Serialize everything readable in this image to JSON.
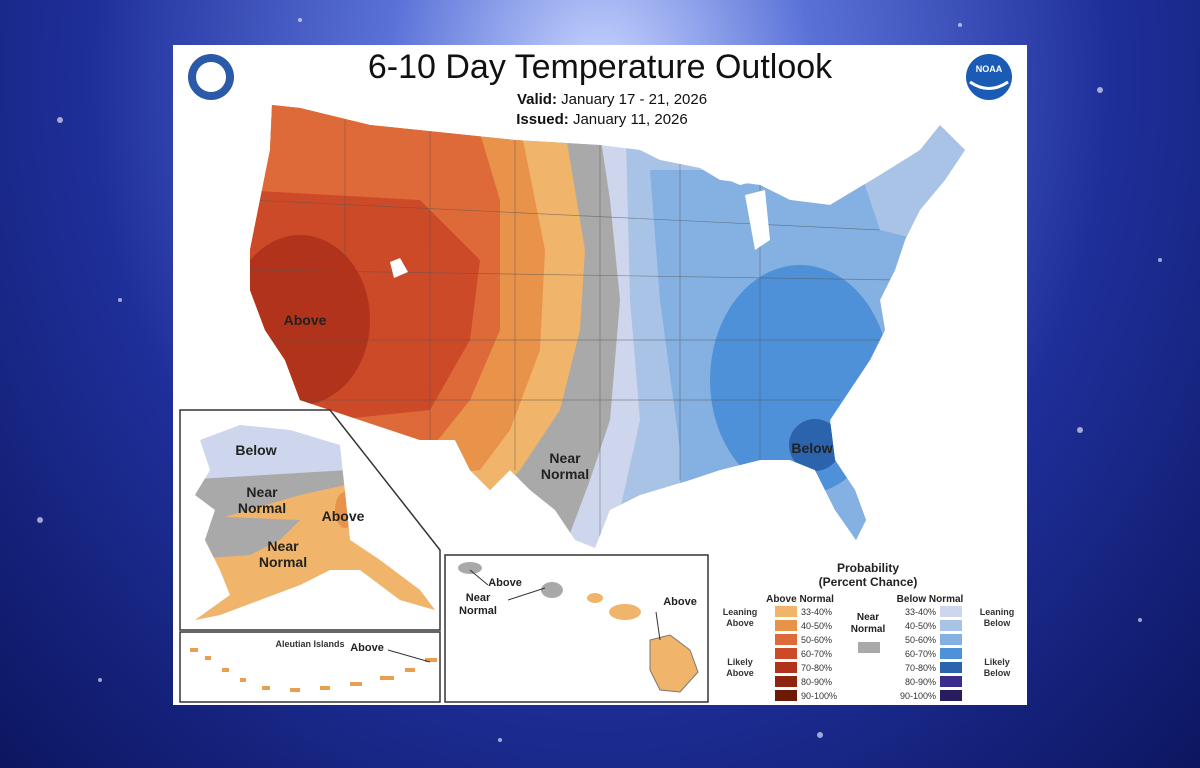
{
  "header": {
    "title": "6-10 Day Temperature Outlook",
    "valid_label": "Valid:",
    "valid_dates": "January 17 - 21, 2026",
    "issued_label": "Issued:",
    "issued_date": "January 11, 2026",
    "logo": "NOAA"
  },
  "contiguous_us": {
    "labels": [
      "Above",
      "Near Normal",
      "Below"
    ]
  },
  "alaska": {
    "labels": [
      "Below",
      "Near Normal",
      "Above",
      "Near Normal"
    ]
  },
  "aleutians": {
    "title": "Aleutian Islands",
    "labels": [
      "Above"
    ]
  },
  "hawaii": {
    "labels": [
      "Above",
      "Near Normal",
      "Above"
    ]
  },
  "legend": {
    "title": "Probability",
    "subtitle": "(Percent Chance)",
    "above": {
      "heading": "Above Normal",
      "groups": [
        "Leaning Above",
        "Likely Above"
      ],
      "bins": [
        {
          "label": "33-40%",
          "color": "#f0b46a"
        },
        {
          "label": "40-50%",
          "color": "#e8924a"
        },
        {
          "label": "50-60%",
          "color": "#de6a3a"
        },
        {
          "label": "60-70%",
          "color": "#cc4a28"
        },
        {
          "label": "70-80%",
          "color": "#b1331b"
        },
        {
          "label": "80-90%",
          "color": "#8e2410"
        },
        {
          "label": "90-100%",
          "color": "#6b1a06"
        }
      ]
    },
    "near": {
      "label": "Near Normal",
      "color": "#a9a9a9"
    },
    "below": {
      "heading": "Below Normal",
      "groups": [
        "Leaning Below",
        "Likely Below"
      ],
      "bins": [
        {
          "label": "33-40%",
          "color": "#cdd6ec"
        },
        {
          "label": "40-50%",
          "color": "#a9c3e6"
        },
        {
          "label": "50-60%",
          "color": "#84b0e2"
        },
        {
          "label": "60-70%",
          "color": "#4f91d8"
        },
        {
          "label": "70-80%",
          "color": "#2b63ad"
        },
        {
          "label": "80-90%",
          "color": "#3a2d8c"
        },
        {
          "label": "90-100%",
          "color": "#2a1a5e"
        }
      ]
    }
  }
}
